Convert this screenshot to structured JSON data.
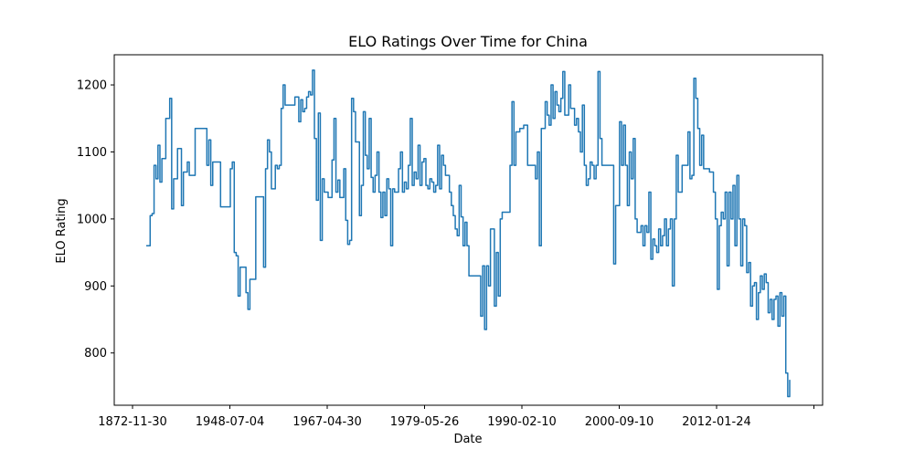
{
  "chart_data": {
    "type": "line",
    "title": "ELO Ratings Over Time for China",
    "xlabel": "Date",
    "ylabel": "ELO Rating",
    "x_ticks": [
      "1872-11-30",
      "1948-07-04",
      "1967-04-30",
      "1979-05-26",
      "1990-02-10",
      "2000-09-10",
      "2012-01-24",
      ""
    ],
    "y_ticks": [
      800,
      900,
      1000,
      1100,
      1200
    ],
    "ylim": [
      722,
      1245
    ],
    "grid": false,
    "line_color": "#1f77b4",
    "series": [
      {
        "values": [
          960,
          960,
          1005,
          1008,
          1080,
          1060,
          1110,
          1055,
          1090,
          1090,
          1150,
          1150,
          1180,
          1015,
          1060,
          1060,
          1105,
          1105,
          1020,
          1070,
          1070,
          1085,
          1065,
          1065,
          1065,
          1135,
          1135,
          1135,
          1135,
          1135,
          1135,
          1080,
          1118,
          1050,
          1085,
          1085,
          1085,
          1085,
          1018,
          1018,
          1018,
          1018,
          1018,
          1075,
          1085,
          950,
          945,
          885,
          928,
          928,
          928,
          890,
          865,
          910,
          910,
          910,
          1033,
          1033,
          1033,
          1033,
          928,
          1075,
          1118,
          1100,
          1045,
          1045,
          1080,
          1075,
          1080,
          1165,
          1200,
          1170,
          1170,
          1170,
          1170,
          1170,
          1182,
          1182,
          1145,
          1178,
          1160,
          1165,
          1182,
          1190,
          1185,
          1222,
          1120,
          1028,
          1158,
          968,
          1060,
          1040,
          1040,
          1032,
          1032,
          1088,
          1150,
          1040,
          1058,
          1032,
          1032,
          1075,
          998,
          962,
          968,
          1180,
          1160,
          1115,
          1115,
          1005,
          1050,
          1160,
          1095,
          1075,
          1150,
          1062,
          1040,
          1065,
          1100,
          1040,
          1002,
          1040,
          1005,
          1060,
          1045,
          960,
          1045,
          1040,
          1040,
          1075,
          1100,
          1040,
          1055,
          1045,
          1080,
          1150,
          1050,
          1070,
          1060,
          1110,
          1050,
          1085,
          1090,
          1050,
          1045,
          1060,
          1055,
          1040,
          1050,
          1110,
          1045,
          1095,
          1080,
          1065,
          1065,
          1040,
          1020,
          1005,
          985,
          975,
          1050,
          1003,
          960,
          995,
          960,
          915,
          915,
          915,
          915,
          915,
          915,
          855,
          930,
          835,
          930,
          900,
          985,
          985,
          870,
          950,
          885,
          1000,
          1010,
          1010,
          1010,
          1010,
          1080,
          1175,
          1080,
          1130,
          1130,
          1135,
          1135,
          1140,
          1140,
          1080,
          1080,
          1080,
          1080,
          1060,
          1100,
          960,
          1135,
          1135,
          1175,
          1155,
          1140,
          1200,
          1150,
          1190,
          1170,
          1160,
          1180,
          1220,
          1155,
          1155,
          1200,
          1165,
          1165,
          1140,
          1150,
          1130,
          1100,
          1170,
          1080,
          1050,
          1060,
          1085,
          1080,
          1060,
          1080,
          1220,
          1120,
          1080,
          1080,
          1080,
          1080,
          1080,
          1080,
          933,
          1020,
          1020,
          1145,
          1080,
          1140,
          1080,
          1020,
          1100,
          1060,
          1120,
          1000,
          980,
          980,
          990,
          960,
          990,
          980,
          1040,
          940,
          970,
          960,
          950,
          985,
          960,
          975,
          1000,
          960,
          985,
          1000,
          900,
          1000,
          1095,
          1040,
          1040,
          1080,
          1080,
          1080,
          1130,
          1060,
          1065,
          1210,
          1180,
          1135,
          1080,
          1125,
          1075,
          1075,
          1075,
          1070,
          1070,
          1040,
          1000,
          895,
          990,
          1010,
          1000,
          1040,
          930,
          1040,
          1000,
          1050,
          960,
          1065,
          1000,
          930,
          1000,
          990,
          920,
          935,
          870,
          900,
          905,
          850,
          890,
          915,
          895,
          918,
          905,
          860,
          880,
          850,
          880,
          885,
          840,
          890,
          855,
          885,
          770,
          735,
          760
        ]
      }
    ]
  }
}
